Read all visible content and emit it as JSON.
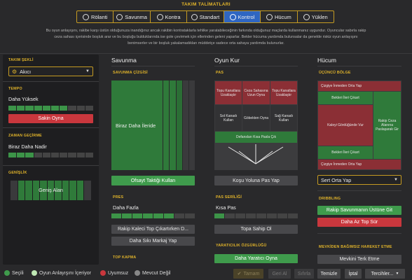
{
  "title": "TAKIM TALİMATLARI",
  "tabs": [
    {
      "label": "Rölanti",
      "icon": "idle-icon"
    },
    {
      "label": "Savunma",
      "icon": "shield-icon"
    },
    {
      "label": "Kontra",
      "icon": "counter-icon"
    },
    {
      "label": "Standart",
      "icon": "standard-icon"
    },
    {
      "label": "Kontrol",
      "icon": "control-icon",
      "active": true
    },
    {
      "label": "Hücum",
      "icon": "attack-icon"
    },
    {
      "label": "Yüklen",
      "icon": "overload-icon"
    }
  ],
  "intro_line1": "Bu oyun anlayışını, rakibe karşı üstün olduğunuza inandığınız ancak rakibin kontratak­larla tehlike yaratabileceğinin farkında olduğunuz maçlarda kullanmanız uygundur. Oyuncular sabırla rakip",
  "intro_line2": "ceza sahası içerisinde boşluk arar ve bu boşluğu bulduklarında ise gole çevirmek için ellerinden geleni yaparlar. Bekler hücuma yardımda bulunsalar da genelde riskiz oyun anlayışını",
  "intro_line3": "benimserler ve bir boşluk yakalamadıkları müddetçe sadece orta sahaya yardımda bulunurlar.",
  "sidebar": {
    "team_shape_label": "TAKIM ŞEKLİ",
    "team_shape_value": "Akıcı",
    "tempo_label": "TEMPO",
    "tempo_value": "Daha Yüksek",
    "tempo_level": 0.7,
    "tempo_button": "Sakin Oyna",
    "time_wasting_label": "ZAMAN GEÇİRME",
    "time_wasting_value": "Biraz Daha Nadir",
    "time_wasting_level": 0.3,
    "width_label": "GENİŞLİK",
    "width_value": "Geniş Alan"
  },
  "defense": {
    "header": "Savunma",
    "line_label": "SAVUNMA ÇİZGİSİ",
    "line_value": "Biraz Daha İleride",
    "offside_button": "Ofsayt Taktiği Kullan",
    "press_label": "PRES",
    "press_value": "Daha Fazla",
    "press_level": 0.75,
    "press_button1": "Rakip Kaleci Top Çıkartırken D...",
    "press_button2": "Daha Sıkı Markaj Yap",
    "tackling_label": "TOP KAPMA"
  },
  "buildup": {
    "header": "Oyun Kur",
    "pass_label": "PAS",
    "cells": [
      [
        "Topu Kanatlara Uzaklaştır",
        "Ceza Sahasına Uzun Oyna",
        "Topu Kanatlara Uzaklaştır"
      ],
      [
        "Sol Kanadı Kullan",
        "Göbekten Oyna",
        "Sağ Kanadı Kullan"
      ]
    ],
    "pitch_bottom": "Defansları Kısa Pasla Çık",
    "pass_button": "Koşu Yoluna Pas Yap",
    "pass_range_label": "PAS SERİLİĞİ",
    "pass_range_value": "Kısa Pas",
    "pass_range_level": 0.15,
    "possession_button": "Topa Sahip Ol",
    "creativity_label": "YARATICILIK ÖZGÜRLÜĞÜ",
    "creativity_button": "Daha Yaratıcı Oyna"
  },
  "attack": {
    "header": "Hücum",
    "third_label": "ÜÇÜNCÜ BÖLGE",
    "cross_top": "Çizgiye İnmeden Orta Yap",
    "fullback_top": "Bekleri İleri Çıkart",
    "center_left": "Kaleyi Gördüğünde Vur",
    "center_right": "Rakip Ceza Alanına Paslaşarak Gir",
    "fullback_bottom": "Bekleri İleri Çıkart",
    "cross_bottom": "Çizgiye İnmeden Orta Yap",
    "cross_dropdown": "Sert Orta Yap",
    "dribbling_label": "DRIBBLING",
    "dribble_button1": "Rakip Savunmanın Üstüne Git",
    "dribble_button2": "Daha Az Top Sür",
    "freedom_label": "MEVKİDEN BAĞIMSIZ HAREKET ETME",
    "freedom_button": "Mevkini Terk Etme"
  },
  "legend": [
    {
      "label": "Seçili",
      "color": "#3f9b4c"
    },
    {
      "label": "Oyun Anlayışını İçeriyor",
      "color": "#bfe8b4"
    },
    {
      "label": "Uyumsuz",
      "color": "#c9373d"
    },
    {
      "label": "Mevcut Değil",
      "color": "#888888"
    }
  ],
  "actions": {
    "ok": "Tamam",
    "undo": "Geri Al",
    "reset": "Sıfırla",
    "clear": "Temizle",
    "cancel": "İptal",
    "preferences": "Tercihler..."
  },
  "colors": {
    "accent": "#e0b32a",
    "active_tab": "#2f66c2",
    "green": "#3f9b4c",
    "red": "#c9373d"
  }
}
